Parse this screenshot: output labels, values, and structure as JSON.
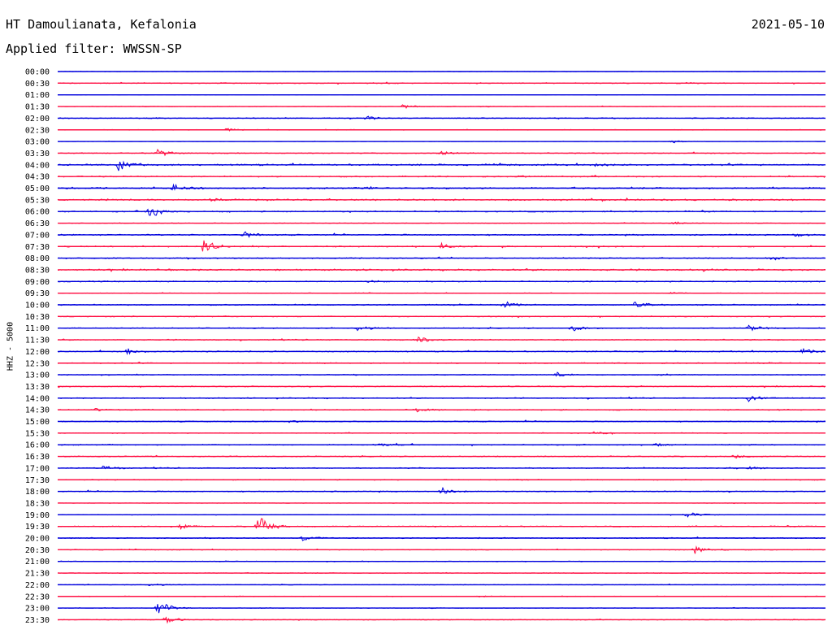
{
  "header": {
    "station": "HT Damoulianata, Kefalonia",
    "date": "2021-05-10",
    "filter": "Applied filter: WWSSN-SP"
  },
  "colors": {
    "trace_even": "#0000dd",
    "trace_odd": "#ff1144"
  },
  "chart_data": {
    "type": "line",
    "kind": "helicorder",
    "ylabel": "HHZ - 5000",
    "rows": [
      {
        "label": "00:00",
        "amp": 0.4,
        "events": [
          [
            0.25,
            0.5
          ]
        ]
      },
      {
        "label": "00:30",
        "amp": 0.8,
        "events": [
          [
            0.82,
            1
          ]
        ]
      },
      {
        "label": "01:00",
        "amp": 0.3,
        "events": []
      },
      {
        "label": "01:30",
        "amp": 0.5,
        "events": [
          [
            0.45,
            3
          ],
          [
            0.55,
            1
          ]
        ]
      },
      {
        "label": "02:00",
        "amp": 0.8,
        "events": [
          [
            0.4,
            3
          ],
          [
            0.12,
            1
          ]
        ]
      },
      {
        "label": "02:30",
        "amp": 0.6,
        "events": [
          [
            0.22,
            2
          ]
        ]
      },
      {
        "label": "03:00",
        "amp": 0.3,
        "events": [
          [
            0.8,
            2
          ]
        ]
      },
      {
        "label": "03:30",
        "amp": 0.8,
        "events": [
          [
            0.13,
            6
          ],
          [
            0.5,
            4
          ]
        ]
      },
      {
        "label": "04:00",
        "amp": 1.3,
        "events": [
          [
            0.08,
            10
          ],
          [
            0.7,
            2
          ]
        ]
      },
      {
        "label": "04:30",
        "amp": 1.0,
        "events": [
          [
            0.6,
            1
          ]
        ]
      },
      {
        "label": "05:00",
        "amp": 1.3,
        "events": [
          [
            0.15,
            5
          ],
          [
            0.4,
            2
          ]
        ]
      },
      {
        "label": "05:30",
        "amp": 1.3,
        "events": [
          [
            0.2,
            2
          ]
        ]
      },
      {
        "label": "06:00",
        "amp": 1.0,
        "events": [
          [
            0.12,
            9
          ]
        ]
      },
      {
        "label": "06:30",
        "amp": 0.5,
        "events": [
          [
            0.8,
            3
          ]
        ]
      },
      {
        "label": "07:00",
        "amp": 1.0,
        "events": [
          [
            0.24,
            6
          ],
          [
            0.96,
            3
          ]
        ]
      },
      {
        "label": "07:30",
        "amp": 1.0,
        "events": [
          [
            0.19,
            13
          ],
          [
            0.5,
            4
          ]
        ]
      },
      {
        "label": "08:00",
        "amp": 0.9,
        "events": [
          [
            0.93,
            3
          ]
        ]
      },
      {
        "label": "08:30",
        "amp": 1.3,
        "events": [
          [
            0.85,
            1
          ]
        ]
      },
      {
        "label": "09:00",
        "amp": 0.9,
        "events": [
          [
            0.4,
            3
          ]
        ]
      },
      {
        "label": "09:30",
        "amp": 0.5,
        "events": [
          [
            0.8,
            2
          ]
        ]
      },
      {
        "label": "10:00",
        "amp": 1.0,
        "events": [
          [
            0.58,
            5
          ],
          [
            0.75,
            6
          ]
        ]
      },
      {
        "label": "10:30",
        "amp": 0.8,
        "events": []
      },
      {
        "label": "11:00",
        "amp": 0.8,
        "events": [
          [
            0.39,
            6
          ],
          [
            0.67,
            5
          ],
          [
            0.9,
            6
          ]
        ]
      },
      {
        "label": "11:30",
        "amp": 0.9,
        "events": [
          [
            0.47,
            5
          ]
        ]
      },
      {
        "label": "12:00",
        "amp": 0.9,
        "events": [
          [
            0.09,
            5
          ],
          [
            0.97,
            4
          ]
        ]
      },
      {
        "label": "12:30",
        "amp": 0.9,
        "events": []
      },
      {
        "label": "13:00",
        "amp": 0.8,
        "events": [
          [
            0.65,
            3
          ],
          [
            0.78,
            3
          ]
        ]
      },
      {
        "label": "13:30",
        "amp": 0.8,
        "events": []
      },
      {
        "label": "14:00",
        "amp": 0.9,
        "events": [
          [
            0.9,
            4
          ]
        ]
      },
      {
        "label": "14:30",
        "amp": 0.9,
        "events": [
          [
            0.47,
            4
          ],
          [
            0.05,
            2
          ]
        ]
      },
      {
        "label": "15:00",
        "amp": 0.8,
        "events": [
          [
            0.3,
            2
          ]
        ]
      },
      {
        "label": "15:30",
        "amp": 0.6,
        "events": [
          [
            0.7,
            2
          ]
        ]
      },
      {
        "label": "16:00",
        "amp": 0.9,
        "events": [
          [
            0.42,
            2
          ],
          [
            0.78,
            2
          ]
        ]
      },
      {
        "label": "16:30",
        "amp": 0.8,
        "events": [
          [
            0.88,
            3
          ]
        ]
      },
      {
        "label": "17:00",
        "amp": 0.9,
        "events": [
          [
            0.06,
            3
          ],
          [
            0.9,
            3
          ]
        ]
      },
      {
        "label": "17:30",
        "amp": 0.8,
        "events": []
      },
      {
        "label": "18:00",
        "amp": 0.8,
        "events": [
          [
            0.5,
            5
          ]
        ]
      },
      {
        "label": "18:30",
        "amp": 0.4,
        "events": []
      },
      {
        "label": "19:00",
        "amp": 0.5,
        "events": [
          [
            0.82,
            5
          ]
        ]
      },
      {
        "label": "19:30",
        "amp": 0.8,
        "events": [
          [
            0.16,
            4
          ],
          [
            0.26,
            18
          ]
        ]
      },
      {
        "label": "20:00",
        "amp": 0.9,
        "events": [
          [
            0.32,
            5
          ]
        ]
      },
      {
        "label": "20:30",
        "amp": 0.7,
        "events": [
          [
            0.83,
            7
          ]
        ]
      },
      {
        "label": "21:00",
        "amp": 0.6,
        "events": []
      },
      {
        "label": "21:30",
        "amp": 0.6,
        "events": []
      },
      {
        "label": "22:00",
        "amp": 0.5,
        "events": [
          [
            0.12,
            3
          ]
        ]
      },
      {
        "label": "22:30",
        "amp": 0.6,
        "events": [
          [
            0.55,
            1
          ]
        ]
      },
      {
        "label": "23:00",
        "amp": 0.5,
        "events": [
          [
            0.13,
            12
          ]
        ]
      },
      {
        "label": "23:30",
        "amp": 0.6,
        "events": [
          [
            0.14,
            6
          ]
        ]
      }
    ]
  }
}
